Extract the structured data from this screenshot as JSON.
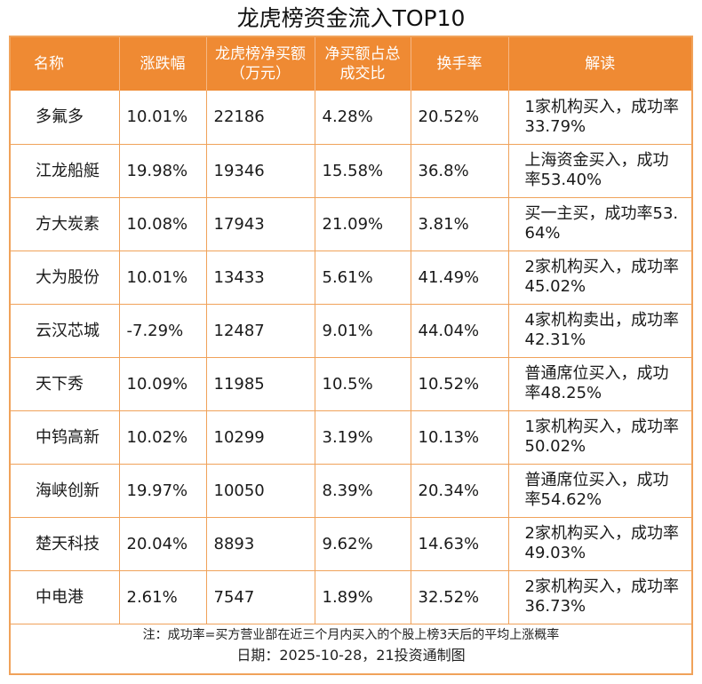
{
  "title": "龙虎榜资金流入TOP10",
  "columns": [
    "名称",
    "涨跌幅",
    "龙虎榜净买额（万元）",
    "净买额占总成交比",
    "换手率",
    "解读"
  ],
  "rows": [
    [
      "多氟多",
      "10.01%",
      "22186",
      "4.28%",
      "20.52%",
      "1家机构买入，成功率33.79%"
    ],
    [
      "江龙船艇",
      "19.98%",
      "19346",
      "15.58%",
      "36.8%",
      "上海资金买入，成功率53.40%"
    ],
    [
      "方大炭素",
      "10.08%",
      "17943",
      "21.09%",
      "3.81%",
      "买一主买，成功率53.64%"
    ],
    [
      "大为股份",
      "10.01%",
      "13433",
      "5.61%",
      "41.49%",
      "2家机构买入，成功率45.02%"
    ],
    [
      "云汉芯城",
      "-7.29%",
      "12487",
      "9.01%",
      "44.04%",
      "4家机构卖出，成功率42.31%"
    ],
    [
      "天下秀",
      "10.09%",
      "11985",
      "10.5%",
      "10.52%",
      "普通席位买入，成功率48.25%"
    ],
    [
      "中钨高新",
      "10.02%",
      "10299",
      "3.19%",
      "10.13%",
      "1家机构买入，成功率50.02%"
    ],
    [
      "海峡创新",
      "19.97%",
      "10050",
      "8.39%",
      "20.34%",
      "普通席位买入，成功率54.62%"
    ],
    [
      "楚天科技",
      "20.04%",
      "8893",
      "9.62%",
      "14.63%",
      "2家机构买入，成功率49.03%"
    ],
    [
      "中电港",
      "2.61%",
      "7547",
      "1.89%",
      "32.52%",
      "2家机构买入，成功率36.73%"
    ]
  ],
  "footer": {
    "note": "注：成功率=买方营业部在近三个月内买入的个股上榜3天后的平均上涨概率",
    "date": "日期：2025-10-28，21投资通制图"
  },
  "colors": {
    "header_bg": "#ef8a33",
    "border": "#f0a25a"
  }
}
